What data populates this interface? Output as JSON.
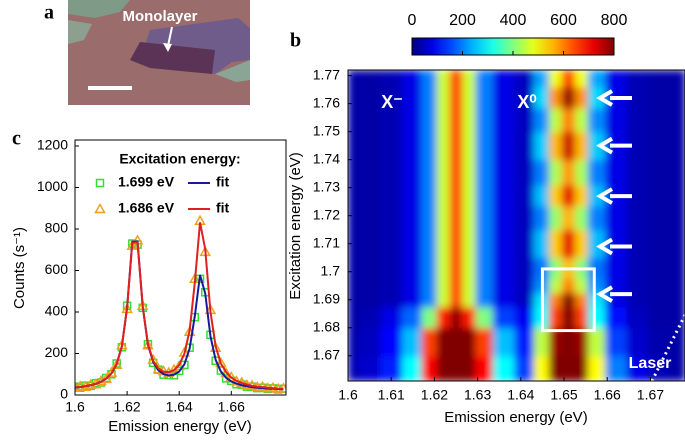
{
  "chart_data": [
    {
      "type": "image",
      "label": "a",
      "annotation": "Monolayer"
    },
    {
      "type": "heatmap",
      "label": "b",
      "xlabel": "Emission energy (eV)",
      "ylabel": "Excitation energy (eV)",
      "colormap": "jet",
      "clim": [
        0,
        800
      ],
      "cticks": [
        0,
        200,
        400,
        600,
        800
      ],
      "xlim": [
        1.6,
        1.678
      ],
      "xticks": [
        1.6,
        1.61,
        1.62,
        1.63,
        1.64,
        1.65,
        1.66,
        1.67
      ],
      "ylim": [
        1.661,
        1.772
      ],
      "yticks": [
        1.67,
        1.68,
        1.69,
        1.7,
        1.71,
        1.72,
        1.73,
        1.74,
        1.75,
        1.76,
        1.77
      ],
      "annotations": [
        "X⁻",
        "X⁰",
        "Laser"
      ],
      "arrows": [
        1.762,
        1.745,
        1.727,
        1.709,
        1.692
      ],
      "box": {
        "x": [
          1.645,
          1.657
        ],
        "y": [
          1.679,
          1.701
        ]
      },
      "x": [
        1.6,
        1.605,
        1.61,
        1.615,
        1.619,
        1.622,
        1.625,
        1.628,
        1.631,
        1.636,
        1.641,
        1.645,
        1.648,
        1.651,
        1.654,
        1.657,
        1.662,
        1.667,
        1.672,
        1.677
      ],
      "y": [
        1.665,
        1.675,
        1.685,
        1.69,
        1.695,
        1.7,
        1.71,
        1.72,
        1.727,
        1.735,
        1.745,
        1.755,
        1.762,
        1.77
      ],
      "z": [
        [
          40,
          60,
          120,
          300,
          700,
          900,
          950,
          900,
          700,
          300,
          150,
          500,
          800,
          950,
          800,
          500,
          200,
          80,
          40,
          30
        ],
        [
          35,
          50,
          100,
          250,
          650,
          880,
          920,
          880,
          650,
          250,
          120,
          450,
          780,
          920,
          780,
          450,
          150,
          60,
          35,
          30
        ],
        [
          30,
          40,
          80,
          180,
          400,
          680,
          780,
          680,
          400,
          150,
          90,
          300,
          650,
          800,
          650,
          300,
          110,
          50,
          30,
          30
        ],
        [
          30,
          30,
          40,
          80,
          200,
          460,
          650,
          460,
          200,
          80,
          50,
          280,
          600,
          800,
          600,
          280,
          80,
          40,
          30,
          30
        ],
        [
          30,
          30,
          40,
          80,
          200,
          460,
          650,
          460,
          200,
          80,
          50,
          210,
          450,
          600,
          450,
          210,
          80,
          40,
          30,
          30
        ],
        [
          30,
          30,
          40,
          80,
          200,
          460,
          650,
          460,
          200,
          80,
          50,
          190,
          410,
          550,
          410,
          190,
          80,
          40,
          30,
          30
        ],
        [
          30,
          30,
          40,
          80,
          200,
          460,
          650,
          460,
          200,
          80,
          50,
          250,
          540,
          720,
          540,
          250,
          80,
          40,
          30,
          30
        ],
        [
          30,
          30,
          40,
          80,
          200,
          460,
          650,
          460,
          200,
          80,
          50,
          200,
          420,
          560,
          420,
          200,
          80,
          40,
          30,
          30
        ],
        [
          30,
          30,
          40,
          80,
          200,
          460,
          650,
          460,
          200,
          80,
          50,
          250,
          540,
          720,
          540,
          250,
          80,
          40,
          30,
          30
        ],
        [
          30,
          30,
          40,
          80,
          200,
          460,
          650,
          460,
          200,
          80,
          50,
          200,
          435,
          580,
          435,
          200,
          80,
          40,
          30,
          30
        ],
        [
          30,
          30,
          40,
          80,
          200,
          460,
          650,
          460,
          200,
          80,
          50,
          260,
          555,
          740,
          555,
          260,
          80,
          40,
          30,
          30
        ],
        [
          30,
          30,
          40,
          80,
          200,
          460,
          650,
          460,
          200,
          80,
          50,
          210,
          450,
          600,
          450,
          210,
          80,
          40,
          30,
          30
        ],
        [
          30,
          30,
          40,
          80,
          200,
          460,
          650,
          460,
          200,
          80,
          50,
          270,
          585,
          780,
          585,
          270,
          80,
          40,
          30,
          30
        ],
        [
          30,
          30,
          40,
          80,
          200,
          460,
          650,
          460,
          200,
          80,
          50,
          230,
          490,
          650,
          490,
          230,
          80,
          40,
          30,
          30
        ]
      ]
    },
    {
      "type": "line",
      "label": "c",
      "xlabel": "Emission energy (eV)",
      "ylabel": "Counts (s⁻¹)",
      "legend_title": "Excitation energy:",
      "xlim": [
        1.6,
        1.681
      ],
      "xticks": [
        1.6,
        1.62,
        1.64,
        1.66
      ],
      "ylim": [
        0,
        1200
      ],
      "yticks": [
        0,
        200,
        400,
        600,
        800,
        1000,
        1200
      ],
      "x": [
        1.6,
        1.602,
        1.604,
        1.606,
        1.608,
        1.61,
        1.612,
        1.614,
        1.616,
        1.618,
        1.62,
        1.622,
        1.624,
        1.626,
        1.628,
        1.63,
        1.632,
        1.634,
        1.636,
        1.638,
        1.64,
        1.642,
        1.644,
        1.646,
        1.648,
        1.65,
        1.652,
        1.654,
        1.656,
        1.658,
        1.66,
        1.662,
        1.664,
        1.666,
        1.668,
        1.67,
        1.672,
        1.674,
        1.676,
        1.678,
        1.68
      ],
      "series": [
        {
          "name": "1.699 eV",
          "color": "#33dd33",
          "style": "markers",
          "marker": "square",
          "values": [
            40,
            35,
            45,
            44,
            57,
            60,
            82,
            100,
            152,
            230,
            430,
            730,
            725,
            420,
            245,
            155,
            122,
            98,
            96,
            95,
            116,
            145,
            228,
            375,
            560,
            495,
            290,
            165,
            118,
            80,
            68,
            52,
            50,
            40,
            40,
            33,
            35,
            30,
            32,
            27,
            30
          ]
        },
        {
          "name": "1.686 eV",
          "color": "#f0a020",
          "style": "markers",
          "marker": "triangle",
          "values": [
            35,
            42,
            40,
            50,
            52,
            68,
            78,
            108,
            146,
            240,
            415,
            720,
            745,
            430,
            240,
            170,
            125,
            115,
            108,
            122,
            140,
            205,
            305,
            560,
            840,
            690,
            410,
            228,
            155,
            106,
            86,
            66,
            60,
            48,
            46,
            38,
            40,
            33,
            35,
            30,
            32
          ]
        },
        {
          "name": "fit",
          "color": "#1a1aa0",
          "style": "line",
          "values": [
            36,
            38,
            42,
            47,
            54,
            64,
            79,
            104,
            148,
            235,
            422,
            739,
            740,
            426,
            242,
            159,
            119,
            101,
            94,
            98,
            113,
            148,
            224,
            381,
            578,
            489,
            283,
            169,
            113,
            83,
            65,
            55,
            47,
            42,
            38,
            35,
            33,
            31,
            30,
            29,
            28
          ]
        },
        {
          "name": "fit",
          "color": "#e02020",
          "style": "line",
          "values": [
            37,
            40,
            43,
            48,
            55,
            65,
            80,
            105,
            149,
            236,
            420,
            734,
            736,
            426,
            247,
            165,
            128,
            112,
            110,
            120,
            145,
            199,
            311,
            542,
            832,
            702,
            401,
            234,
            152,
            110,
            84,
            68,
            58,
            50,
            44,
            40,
            38,
            35,
            33,
            31,
            30
          ]
        }
      ]
    }
  ]
}
